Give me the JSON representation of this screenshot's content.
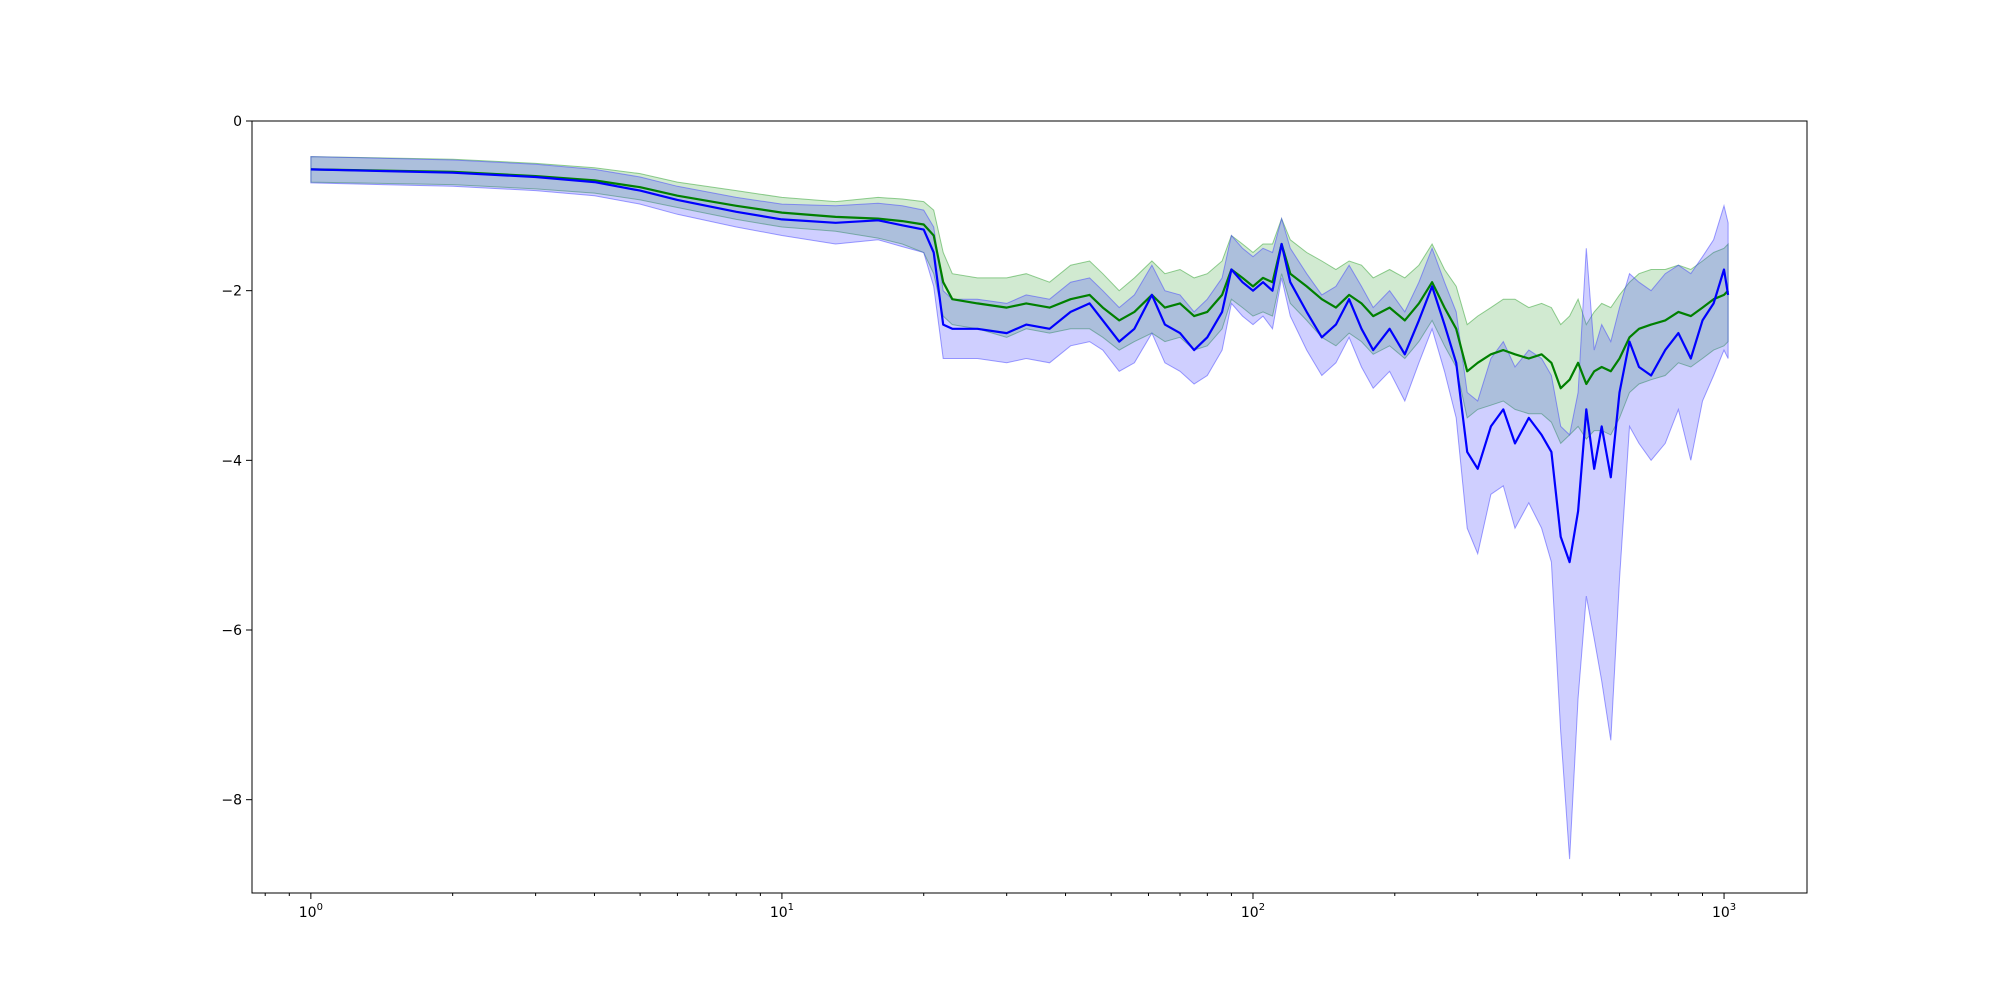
{
  "chart_data": {
    "type": "line",
    "title": "",
    "xlabel": "",
    "ylabel": "",
    "xscale": "log",
    "xlim": [
      0.75,
      1500
    ],
    "ylim": [
      -9.1,
      0
    ],
    "grid": false,
    "legend": "none",
    "x_ticks": [
      {
        "value": 1,
        "base": "10",
        "exp": "0"
      },
      {
        "value": 10,
        "base": "10",
        "exp": "1"
      },
      {
        "value": 100,
        "base": "10",
        "exp": "2"
      },
      {
        "value": 1000,
        "base": "10",
        "exp": "3"
      }
    ],
    "y_ticks": [
      {
        "value": 0,
        "label": "0"
      },
      {
        "value": -2,
        "label": "−2"
      },
      {
        "value": -4,
        "label": "−4"
      },
      {
        "value": -6,
        "label": "−6"
      },
      {
        "value": -8,
        "label": "−8"
      }
    ],
    "series": [
      {
        "color": "#008000",
        "band_color": "#2ca02c",
        "band_opacity": 0.22,
        "points": [
          [
            1,
            -0.57,
            -0.42,
            -0.72
          ],
          [
            2,
            -0.6,
            -0.45,
            -0.75
          ],
          [
            3,
            -0.65,
            -0.5,
            -0.8
          ],
          [
            4,
            -0.7,
            -0.55,
            -0.85
          ],
          [
            5,
            -0.78,
            -0.62,
            -0.93
          ],
          [
            6,
            -0.88,
            -0.72,
            -1.02
          ],
          [
            8,
            -1.0,
            -0.82,
            -1.16
          ],
          [
            10,
            -1.08,
            -0.9,
            -1.25
          ],
          [
            13,
            -1.13,
            -0.95,
            -1.3
          ],
          [
            16,
            -1.15,
            -0.9,
            -1.38
          ],
          [
            18,
            -1.18,
            -0.92,
            -1.45
          ],
          [
            20,
            -1.22,
            -0.95,
            -1.55
          ],
          [
            21,
            -1.35,
            -1.05,
            -1.8
          ],
          [
            22,
            -1.9,
            -1.55,
            -2.3
          ],
          [
            23,
            -2.1,
            -1.8,
            -2.4
          ],
          [
            26,
            -2.15,
            -1.85,
            -2.45
          ],
          [
            30,
            -2.2,
            -1.85,
            -2.55
          ],
          [
            33,
            -2.15,
            -1.8,
            -2.45
          ],
          [
            37,
            -2.2,
            -1.9,
            -2.5
          ],
          [
            41,
            -2.1,
            -1.7,
            -2.45
          ],
          [
            45,
            -2.05,
            -1.65,
            -2.45
          ],
          [
            48,
            -2.2,
            -1.8,
            -2.55
          ],
          [
            52,
            -2.35,
            -2.0,
            -2.7
          ],
          [
            56,
            -2.25,
            -1.85,
            -2.6
          ],
          [
            61,
            -2.05,
            -1.65,
            -2.5
          ],
          [
            65,
            -2.2,
            -1.8,
            -2.6
          ],
          [
            70,
            -2.15,
            -1.75,
            -2.55
          ],
          [
            75,
            -2.3,
            -1.85,
            -2.7
          ],
          [
            80,
            -2.25,
            -1.8,
            -2.65
          ],
          [
            86,
            -2.05,
            -1.65,
            -2.45
          ],
          [
            90,
            -1.75,
            -1.35,
            -2.1
          ],
          [
            95,
            -1.85,
            -1.45,
            -2.2
          ],
          [
            100,
            -1.95,
            -1.55,
            -2.3
          ],
          [
            105,
            -1.85,
            -1.45,
            -2.25
          ],
          [
            110,
            -1.9,
            -1.45,
            -2.3
          ],
          [
            115,
            -1.45,
            -1.15,
            -1.8
          ],
          [
            120,
            -1.8,
            -1.4,
            -2.15
          ],
          [
            130,
            -1.95,
            -1.55,
            -2.35
          ],
          [
            140,
            -2.1,
            -1.65,
            -2.55
          ],
          [
            150,
            -2.2,
            -1.75,
            -2.65
          ],
          [
            160,
            -2.05,
            -1.65,
            -2.5
          ],
          [
            170,
            -2.15,
            -1.7,
            -2.6
          ],
          [
            180,
            -2.3,
            -1.85,
            -2.75
          ],
          [
            195,
            -2.2,
            -1.75,
            -2.65
          ],
          [
            210,
            -2.35,
            -1.85,
            -2.8
          ],
          [
            225,
            -2.15,
            -1.7,
            -2.6
          ],
          [
            240,
            -1.9,
            -1.45,
            -2.35
          ],
          [
            255,
            -2.2,
            -1.75,
            -2.65
          ],
          [
            270,
            -2.45,
            -1.95,
            -2.9
          ],
          [
            285,
            -2.95,
            -2.4,
            -3.5
          ],
          [
            300,
            -2.85,
            -2.3,
            -3.4
          ],
          [
            320,
            -2.75,
            -2.2,
            -3.35
          ],
          [
            340,
            -2.7,
            -2.1,
            -3.3
          ],
          [
            360,
            -2.75,
            -2.1,
            -3.4
          ],
          [
            385,
            -2.8,
            -2.2,
            -3.45
          ],
          [
            410,
            -2.75,
            -2.15,
            -3.45
          ],
          [
            430,
            -2.85,
            -2.2,
            -3.55
          ],
          [
            450,
            -3.15,
            -2.4,
            -3.8
          ],
          [
            470,
            -3.05,
            -2.3,
            -3.7
          ],
          [
            490,
            -2.85,
            -2.1,
            -3.6
          ],
          [
            510,
            -3.1,
            -2.4,
            -3.75
          ],
          [
            530,
            -2.95,
            -2.25,
            -3.65
          ],
          [
            550,
            -2.9,
            -2.15,
            -3.65
          ],
          [
            575,
            -2.95,
            -2.2,
            -3.7
          ],
          [
            600,
            -2.8,
            -2.05,
            -3.5
          ],
          [
            630,
            -2.55,
            -1.9,
            -3.2
          ],
          [
            660,
            -2.45,
            -1.8,
            -3.1
          ],
          [
            700,
            -2.4,
            -1.75,
            -3.05
          ],
          [
            750,
            -2.35,
            -1.75,
            -3.0
          ],
          [
            800,
            -2.25,
            -1.7,
            -2.85
          ],
          [
            850,
            -2.3,
            -1.75,
            -2.9
          ],
          [
            900,
            -2.2,
            -1.65,
            -2.8
          ],
          [
            950,
            -2.1,
            -1.55,
            -2.7
          ],
          [
            1000,
            -2.05,
            -1.5,
            -2.65
          ],
          [
            1020,
            -2.0,
            -1.45,
            -2.6
          ]
        ]
      },
      {
        "color": "#0000ff",
        "band_color": "#4040ff",
        "band_opacity": 0.25,
        "points": [
          [
            1,
            -0.57,
            -0.42,
            -0.73
          ],
          [
            2,
            -0.61,
            -0.46,
            -0.77
          ],
          [
            3,
            -0.66,
            -0.51,
            -0.82
          ],
          [
            4,
            -0.72,
            -0.57,
            -0.88
          ],
          [
            5,
            -0.82,
            -0.66,
            -0.98
          ],
          [
            6,
            -0.93,
            -0.77,
            -1.1
          ],
          [
            8,
            -1.07,
            -0.9,
            -1.25
          ],
          [
            10,
            -1.16,
            -0.98,
            -1.35
          ],
          [
            13,
            -1.2,
            -1.0,
            -1.45
          ],
          [
            16,
            -1.17,
            -0.97,
            -1.4
          ],
          [
            18,
            -1.23,
            -1.0,
            -1.48
          ],
          [
            20,
            -1.28,
            -1.05,
            -1.55
          ],
          [
            21,
            -1.55,
            -1.25,
            -1.95
          ],
          [
            22,
            -2.4,
            -2.0,
            -2.8
          ],
          [
            23,
            -2.45,
            -2.1,
            -2.8
          ],
          [
            26,
            -2.45,
            -2.1,
            -2.8
          ],
          [
            30,
            -2.5,
            -2.15,
            -2.85
          ],
          [
            33,
            -2.4,
            -2.05,
            -2.8
          ],
          [
            37,
            -2.45,
            -2.1,
            -2.85
          ],
          [
            41,
            -2.25,
            -1.9,
            -2.65
          ],
          [
            45,
            -2.15,
            -1.85,
            -2.6
          ],
          [
            48,
            -2.35,
            -2.0,
            -2.7
          ],
          [
            52,
            -2.6,
            -2.2,
            -2.95
          ],
          [
            56,
            -2.45,
            -2.05,
            -2.85
          ],
          [
            61,
            -2.05,
            -1.7,
            -2.5
          ],
          [
            65,
            -2.4,
            -2.0,
            -2.85
          ],
          [
            70,
            -2.5,
            -2.05,
            -2.95
          ],
          [
            75,
            -2.7,
            -2.25,
            -3.1
          ],
          [
            80,
            -2.55,
            -2.1,
            -3.0
          ],
          [
            86,
            -2.25,
            -1.85,
            -2.7
          ],
          [
            90,
            -1.75,
            -1.35,
            -2.15
          ],
          [
            95,
            -1.9,
            -1.5,
            -2.3
          ],
          [
            100,
            -2.0,
            -1.6,
            -2.4
          ],
          [
            105,
            -1.9,
            -1.5,
            -2.3
          ],
          [
            110,
            -2.0,
            -1.55,
            -2.45
          ],
          [
            115,
            -1.45,
            -1.15,
            -1.85
          ],
          [
            120,
            -1.9,
            -1.5,
            -2.3
          ],
          [
            130,
            -2.25,
            -1.8,
            -2.7
          ],
          [
            140,
            -2.55,
            -2.05,
            -3.0
          ],
          [
            150,
            -2.4,
            -1.95,
            -2.85
          ],
          [
            160,
            -2.1,
            -1.7,
            -2.55
          ],
          [
            170,
            -2.45,
            -1.95,
            -2.9
          ],
          [
            180,
            -2.7,
            -2.2,
            -3.15
          ],
          [
            195,
            -2.45,
            -2.0,
            -2.95
          ],
          [
            210,
            -2.75,
            -2.25,
            -3.3
          ],
          [
            225,
            -2.35,
            -1.9,
            -2.85
          ],
          [
            240,
            -1.95,
            -1.5,
            -2.45
          ],
          [
            255,
            -2.4,
            -1.9,
            -2.95
          ],
          [
            270,
            -2.85,
            -2.25,
            -3.5
          ],
          [
            285,
            -3.9,
            -3.2,
            -4.8
          ],
          [
            300,
            -4.1,
            -3.3,
            -5.1
          ],
          [
            320,
            -3.6,
            -2.8,
            -4.4
          ],
          [
            340,
            -3.4,
            -2.6,
            -4.3
          ],
          [
            360,
            -3.8,
            -2.9,
            -4.8
          ],
          [
            385,
            -3.5,
            -2.7,
            -4.5
          ],
          [
            410,
            -3.7,
            -2.8,
            -4.8
          ],
          [
            430,
            -3.9,
            -3.0,
            -5.2
          ],
          [
            450,
            -4.9,
            -3.6,
            -7.2
          ],
          [
            470,
            -5.2,
            -3.7,
            -8.7
          ],
          [
            490,
            -4.6,
            -3.2,
            -6.8
          ],
          [
            510,
            -3.4,
            -1.5,
            -5.6
          ],
          [
            530,
            -4.1,
            -2.7,
            -6.1
          ],
          [
            550,
            -3.6,
            -2.4,
            -6.6
          ],
          [
            575,
            -4.2,
            -2.6,
            -7.3
          ],
          [
            600,
            -3.2,
            -2.2,
            -5.4
          ],
          [
            630,
            -2.6,
            -1.8,
            -3.6
          ],
          [
            660,
            -2.9,
            -1.9,
            -3.8
          ],
          [
            700,
            -3.0,
            -2.0,
            -4.0
          ],
          [
            750,
            -2.7,
            -1.8,
            -3.8
          ],
          [
            800,
            -2.5,
            -1.7,
            -3.4
          ],
          [
            850,
            -2.8,
            -1.8,
            -4.0
          ],
          [
            900,
            -2.35,
            -1.6,
            -3.3
          ],
          [
            950,
            -2.15,
            -1.4,
            -3.0
          ],
          [
            1000,
            -1.75,
            -1.0,
            -2.7
          ],
          [
            1020,
            -2.05,
            -1.2,
            -2.8
          ]
        ]
      }
    ]
  }
}
